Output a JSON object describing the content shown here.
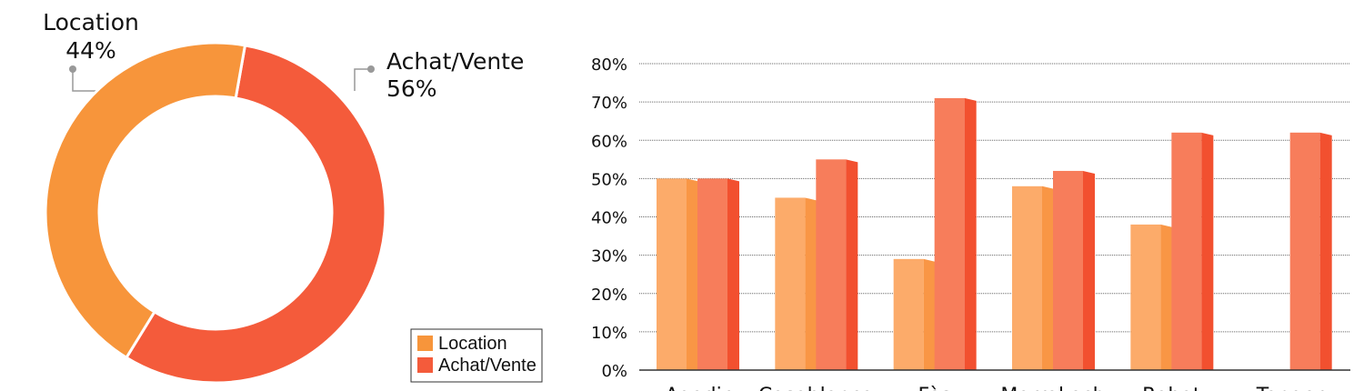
{
  "chart_data": [
    {
      "type": "pie",
      "categories": [
        "Location",
        "Achat/Vente"
      ],
      "values": [
        44,
        56
      ],
      "value_labels": [
        "44%",
        "56%"
      ],
      "colors": [
        "#f7953b",
        "#f45b3b"
      ]
    },
    {
      "type": "bar",
      "categories": [
        "Agadir",
        "Casablanca",
        "Fès",
        "Marrakech",
        "Rabat",
        "Tanger"
      ],
      "series": [
        {
          "color": "#fcab6a",
          "values": [
            50,
            45,
            29,
            48,
            38,
            null
          ]
        },
        {
          "color": "#f77d5b",
          "values": [
            50,
            55,
            71,
            52,
            62,
            62
          ]
        }
      ],
      "ylim": [
        0,
        80
      ],
      "yticks": [
        {
          "value": 0,
          "label": "0%"
        },
        {
          "value": 10,
          "label": "10%"
        },
        {
          "value": 20,
          "label": "20%"
        },
        {
          "value": 30,
          "label": "30%"
        },
        {
          "value": 40,
          "label": "40%"
        },
        {
          "value": 50,
          "label": "50%"
        },
        {
          "value": 60,
          "label": "60%"
        },
        {
          "value": 70,
          "label": "70%"
        },
        {
          "value": 80,
          "label": "80%"
        }
      ],
      "grid": true
    }
  ]
}
